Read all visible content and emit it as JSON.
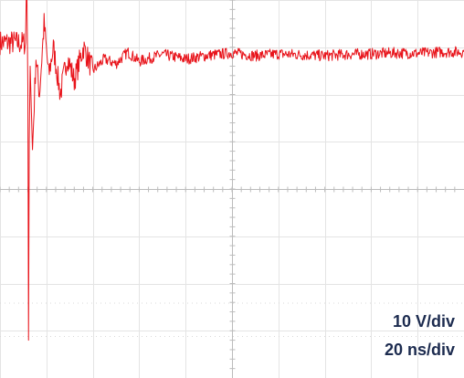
{
  "chart_data": {
    "type": "line",
    "title": "",
    "xlabel": "",
    "ylabel": "",
    "grid": true,
    "grid_divisions": {
      "x": 10,
      "y": 8
    },
    "xlim": [
      0,
      200
    ],
    "ylim": [
      -40,
      40
    ],
    "x_unit": "ns",
    "y_unit": "V",
    "scale_labels": {
      "vertical": "10 V/div",
      "horizontal": "20 ns/div"
    },
    "series": [
      {
        "color": "#e8141b",
        "x": [
          0,
          6,
          10,
          11,
          11.5,
          12,
          12.3,
          12.6,
          13,
          14,
          15.5,
          17,
          19,
          21,
          23,
          26,
          29,
          32,
          36,
          40,
          45,
          50,
          55,
          60,
          70,
          80,
          90,
          100,
          110,
          120,
          130,
          140,
          150,
          160,
          170,
          180,
          190,
          200
        ],
        "y": [
          31,
          31,
          30.8,
          31,
          46,
          22,
          -32,
          10,
          26,
          8,
          28,
          20,
          35,
          24,
          30,
          20,
          28,
          23,
          30,
          25,
          27.5,
          26.5,
          29,
          27,
          28.5,
          27.5,
          28.3,
          28.8,
          28.2,
          28.6,
          28.4,
          28.2,
          28.5,
          28.6,
          28.8,
          28.7,
          29,
          29
        ],
        "noise_v": 1.2
      }
    ]
  }
}
